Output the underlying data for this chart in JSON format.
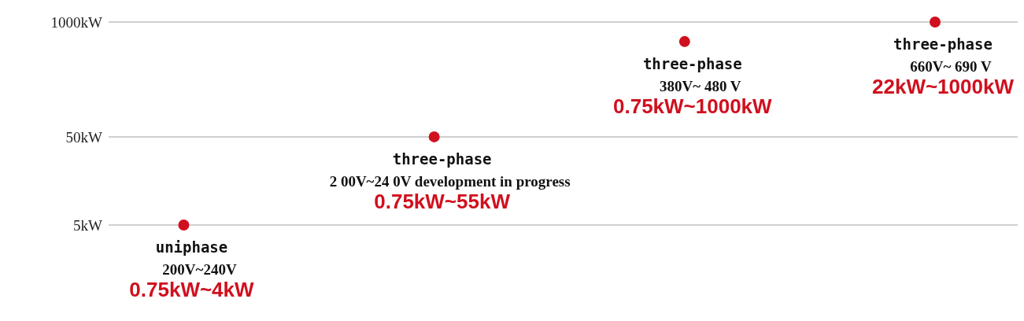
{
  "chart_data": {
    "type": "scatter",
    "categories": [
      null,
      null,
      null,
      null
    ],
    "values": [
      5,
      50,
      600,
      1000
    ],
    "color": "#d0101e",
    "log": "y",
    "ylim": [
      5,
      1000
    ],
    "yticks": [
      {
        "value": 5,
        "label": "5kW"
      },
      {
        "value": 50,
        "label": "50kW"
      },
      {
        "value": 1000,
        "label": "1000kW"
      }
    ],
    "grid": "y",
    "marker": "circle",
    "annotations": [
      "uniphase",
      "200V~240V",
      "0.75kW~4kW",
      "three-phase",
      "2 00V~24 0V development in progress",
      "0.75kW~55kW",
      "three-phase",
      "380V~ 480 V",
      "0.75kW~1000kW",
      "three-phase",
      "660V~ 690 V",
      "22kW~1000kW"
    ]
  }
}
